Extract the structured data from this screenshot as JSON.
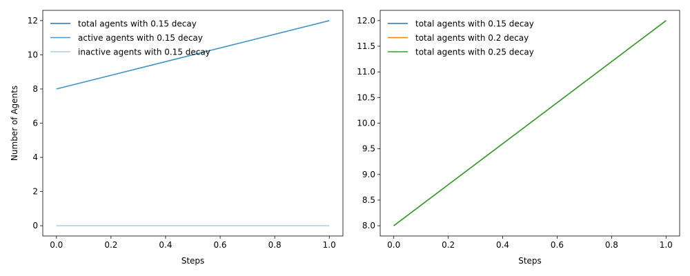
{
  "chart_data": [
    {
      "type": "line",
      "title": "",
      "xlabel": "Steps",
      "ylabel": "Number of Agents",
      "xlim": [
        -0.05,
        1.05
      ],
      "ylim": [
        -0.6,
        12.6
      ],
      "xticks": [
        0.0,
        0.2,
        0.4,
        0.6,
        0.8,
        1.0
      ],
      "xtick_labels": [
        "0.0",
        "0.2",
        "0.4",
        "0.6",
        "0.8",
        "1.0"
      ],
      "yticks": [
        0,
        2,
        4,
        6,
        8,
        10,
        12
      ],
      "ytick_labels": [
        "0",
        "2",
        "4",
        "6",
        "8",
        "10",
        "12"
      ],
      "grid": false,
      "legend_position": "top-left",
      "series": [
        {
          "name": "total agents with 0.15 decay",
          "x": [
            0,
            1
          ],
          "y": [
            8,
            12
          ],
          "color": "#1f77b4"
        },
        {
          "name": "active agents with 0.15 decay",
          "x": [
            0,
            1
          ],
          "y": [
            8,
            12
          ],
          "color": "#4a98c9"
        },
        {
          "name": "inactive agents with 0.15 decay",
          "x": [
            0,
            1
          ],
          "y": [
            0,
            0
          ],
          "color": "#a6cee3"
        }
      ]
    },
    {
      "type": "line",
      "title": "",
      "xlabel": "Steps",
      "ylabel": "",
      "xlim": [
        -0.05,
        1.05
      ],
      "ylim": [
        7.8,
        12.2
      ],
      "xticks": [
        0.0,
        0.2,
        0.4,
        0.6,
        0.8,
        1.0
      ],
      "xtick_labels": [
        "0.0",
        "0.2",
        "0.4",
        "0.6",
        "0.8",
        "1.0"
      ],
      "yticks": [
        8.0,
        8.5,
        9.0,
        9.5,
        10.0,
        10.5,
        11.0,
        11.5,
        12.0
      ],
      "ytick_labels": [
        "8.0",
        "8.5",
        "9.0",
        "9.5",
        "10.0",
        "10.5",
        "11.0",
        "11.5",
        "12.0"
      ],
      "grid": false,
      "legend_position": "top-left",
      "series": [
        {
          "name": "total agents with 0.15 decay",
          "x": [
            0,
            1
          ],
          "y": [
            8,
            12
          ],
          "color": "#1f77b4"
        },
        {
          "name": "total agents with 0.2 decay",
          "x": [
            0,
            1
          ],
          "y": [
            8,
            12
          ],
          "color": "#ff7f0e"
        },
        {
          "name": "total agents with 0.25 decay",
          "x": [
            0,
            1
          ],
          "y": [
            8,
            12
          ],
          "color": "#2ca02c"
        }
      ]
    }
  ]
}
